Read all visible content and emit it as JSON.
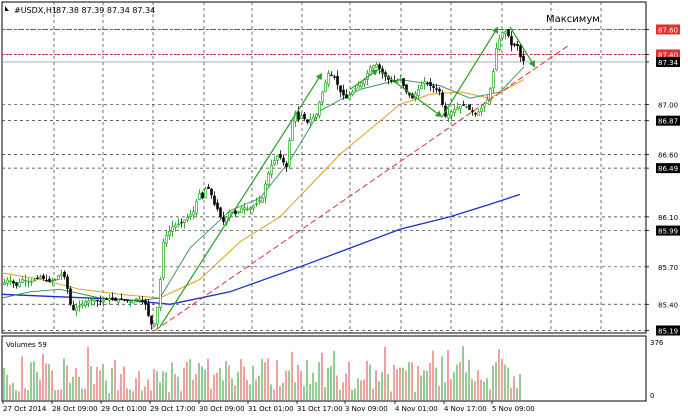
{
  "header": {
    "symbol": "#USDX,H1",
    "ohlc": "87.38 87.39 87.34 87.34",
    "annotation": "Максимум"
  },
  "volumes_label": "Volumes 59",
  "colors": {
    "bull_candle": "#00a000",
    "bear_candle": "#000000",
    "ma_fast": "#2e8b57",
    "ma_mid": "#e0a020",
    "ma_slow": "#1c2fc4",
    "trendline": "#e03030",
    "hline": "#e03030",
    "arrow": "#22a022",
    "grid": "#333333"
  },
  "chart_data": [
    {
      "type": "candlestick",
      "title": "#USDX,H1",
      "x_tick_labels": [
        "27 Oct 2014",
        "28 Oct 09:00",
        "29 Oct 01:00",
        "29 Oct 17:00",
        "30 Oct 09:00",
        "31 Oct 01:00",
        "31 Oct 17:00",
        "3 Nov 09:00",
        "4 Nov 01:00",
        "4 Nov 17:00",
        "5 Nov 09:00"
      ],
      "y_tick_labels": [
        "87.60",
        "87.40",
        "87.34",
        "87.00",
        "86.87",
        "86.60",
        "86.49",
        "86.10",
        "85.99",
        "85.70",
        "85.40",
        "85.19"
      ],
      "ylim": [
        85.17,
        87.82
      ],
      "grid": true,
      "price_path": [
        [
          0,
          85.55
        ],
        [
          8,
          85.6
        ],
        [
          16,
          85.55
        ],
        [
          22,
          85.6
        ],
        [
          30,
          85.58
        ],
        [
          40,
          85.62
        ],
        [
          48,
          85.58
        ],
        [
          55,
          85.6
        ],
        [
          60,
          85.65
        ],
        [
          64,
          85.62
        ],
        [
          66,
          85.6
        ],
        [
          68,
          85.45
        ],
        [
          72,
          85.35
        ],
        [
          78,
          85.38
        ],
        [
          85,
          85.42
        ],
        [
          92,
          85.44
        ],
        [
          100,
          85.42
        ],
        [
          108,
          85.45
        ],
        [
          115,
          85.43
        ],
        [
          122,
          85.44
        ],
        [
          130,
          85.42
        ],
        [
          138,
          85.45
        ],
        [
          145,
          85.4
        ],
        [
          150,
          85.25
        ],
        [
          153,
          85.22
        ],
        [
          156,
          85.3
        ],
        [
          160,
          85.6
        ],
        [
          163,
          85.9
        ],
        [
          166,
          85.95
        ],
        [
          172,
          86.02
        ],
        [
          180,
          86.05
        ],
        [
          188,
          86.1
        ],
        [
          194,
          86.15
        ],
        [
          198,
          86.3
        ],
        [
          202,
          86.25
        ],
        [
          206,
          86.35
        ],
        [
          210,
          86.3
        ],
        [
          214,
          86.2
        ],
        [
          218,
          86.15
        ],
        [
          222,
          86.05
        ],
        [
          226,
          86.1
        ],
        [
          230,
          86.15
        ],
        [
          236,
          86.12
        ],
        [
          242,
          86.18
        ],
        [
          248,
          86.16
        ],
        [
          255,
          86.2
        ],
        [
          262,
          86.25
        ],
        [
          266,
          86.4
        ],
        [
          270,
          86.5
        ],
        [
          274,
          86.55
        ],
        [
          278,
          86.6
        ],
        [
          282,
          86.55
        ],
        [
          286,
          86.5
        ],
        [
          288,
          86.62
        ],
        [
          290,
          86.8
        ],
        [
          294,
          86.95
        ],
        [
          298,
          86.88
        ],
        [
          302,
          86.92
        ],
        [
          306,
          86.85
        ],
        [
          310,
          86.88
        ],
        [
          316,
          86.92
        ],
        [
          320,
          87.05
        ],
        [
          324,
          87.15
        ],
        [
          328,
          87.25
        ],
        [
          334,
          87.22
        ],
        [
          340,
          87.1
        ],
        [
          346,
          87.05
        ],
        [
          352,
          87.1
        ],
        [
          358,
          87.15
        ],
        [
          364,
          87.2
        ],
        [
          370,
          87.3
        ],
        [
          376,
          87.32
        ],
        [
          382,
          87.25
        ],
        [
          388,
          87.2
        ],
        [
          394,
          87.18
        ],
        [
          400,
          87.2
        ],
        [
          406,
          87.1
        ],
        [
          412,
          87.05
        ],
        [
          418,
          87.12
        ],
        [
          424,
          87.18
        ],
        [
          430,
          87.15
        ],
        [
          436,
          87.12
        ],
        [
          440,
          87.1
        ],
        [
          444,
          86.9
        ],
        [
          448,
          86.92
        ],
        [
          452,
          86.95
        ],
        [
          458,
          86.98
        ],
        [
          464,
          87.0
        ],
        [
          470,
          86.95
        ],
        [
          476,
          86.92
        ],
        [
          482,
          86.98
        ],
        [
          488,
          87.05
        ],
        [
          492,
          87.2
        ],
        [
          496,
          87.45
        ],
        [
          500,
          87.55
        ],
        [
          504,
          87.6
        ],
        [
          508,
          87.55
        ],
        [
          512,
          87.45
        ],
        [
          516,
          87.5
        ],
        [
          520,
          87.38
        ],
        [
          524,
          87.34
        ]
      ],
      "volume_ylim": [
        0,
        376
      ],
      "volume_tick_labels": [
        "376",
        "0"
      ]
    }
  ]
}
